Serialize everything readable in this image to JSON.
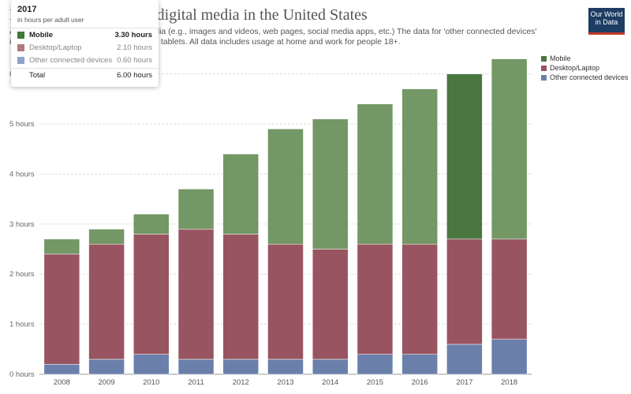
{
  "header": {
    "title": "Daily hours spent with digital media in the United States",
    "subtitle": "Average daily time spent with digital media (e.g., images and videos, web pages, social media apps, etc.) The data for 'other connected devices' includes game consoles, smart TVs, and tablets. All data includes usage at home and work for people 18+."
  },
  "logo": {
    "line1": "Our World",
    "line2": "in Data"
  },
  "tooltip": {
    "year": "2017",
    "unit": "in hours per adult user",
    "rows": [
      {
        "name": "Mobile",
        "value": "3.30 hours",
        "color": "#3e7a38"
      },
      {
        "name": "Desktop/Laptop",
        "value": "2.10 hours",
        "color": "#b07a7d"
      },
      {
        "name": "Other connected devices",
        "value": "0.60 hours",
        "color": "#8fa3c8"
      }
    ],
    "total_label": "Total",
    "total_value": "6.00 hours"
  },
  "chart_data": {
    "type": "bar",
    "stacked": true,
    "categories": [
      "2008",
      "2009",
      "2010",
      "2011",
      "2012",
      "2013",
      "2014",
      "2015",
      "2016",
      "2017",
      "2018"
    ],
    "series": [
      {
        "name": "Other connected devices",
        "color": "#6a80ab",
        "values": [
          0.2,
          0.3,
          0.4,
          0.3,
          0.3,
          0.3,
          0.3,
          0.4,
          0.4,
          0.6,
          0.7
        ]
      },
      {
        "name": "Desktop/Laptop",
        "color": "#985460",
        "values": [
          2.2,
          2.3,
          2.4,
          2.6,
          2.5,
          2.3,
          2.2,
          2.2,
          2.2,
          2.1,
          2.0
        ]
      },
      {
        "name": "Mobile",
        "color": "#739765",
        "values": [
          0.3,
          0.3,
          0.4,
          0.8,
          1.6,
          2.3,
          2.6,
          2.8,
          3.1,
          3.3,
          3.6
        ]
      }
    ],
    "highlight": {
      "category": "2017",
      "colors": {
        "Mobile": "#4a763f",
        "Desktop/Laptop": "#985460",
        "Other connected devices": "#6a80ab"
      }
    },
    "y_ticks": [
      "0 hours",
      "1 hours",
      "2 hours",
      "3 hours",
      "4 hours",
      "5 hours",
      "6 hours"
    ],
    "ylim": [
      0,
      7
    ],
    "legend": [
      {
        "name": "Mobile",
        "color": "#4a763f"
      },
      {
        "name": "Desktop/Laptop",
        "color": "#985460"
      },
      {
        "name": "Other connected devices",
        "color": "#6a80ab"
      }
    ],
    "legend_position": "right",
    "grid": true
  }
}
